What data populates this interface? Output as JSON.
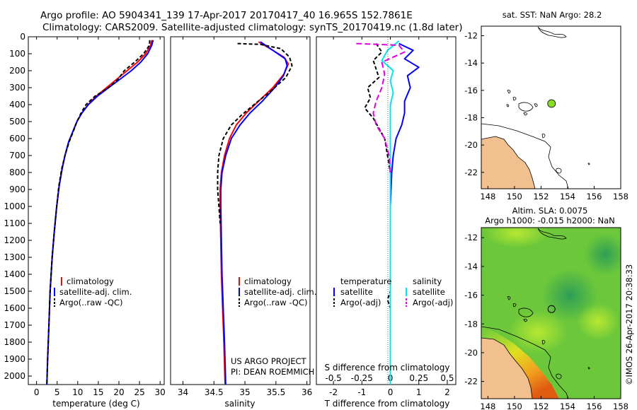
{
  "header": {
    "line1": "Argo profile: AO 5904341_139 17-Apr-2017 20170417_40 16.965S 152.7861E",
    "line2": "Climatology: CARS2009. Satellite-adjusted climatology: synTS_20170419.nc (1.8d later)"
  },
  "credits": {
    "project": "US ARGO PROJECT",
    "pi": "PI: DEAN ROEMMICH",
    "imos": "©IMOS 26-Apr-2017 20:38:33"
  },
  "colors": {
    "climatology": "#ff0000",
    "satellite": "#0000ff",
    "argo": "#000000",
    "sat_s": "#00e5ee",
    "argo_s": "#e000e0",
    "land": "#f2c08e",
    "argo_dot": "#88dd22"
  },
  "depth_axis": {
    "range": [
      0,
      2050
    ],
    "ticks": [
      0,
      100,
      200,
      300,
      400,
      500,
      600,
      700,
      800,
      900,
      1000,
      1100,
      1200,
      1300,
      1400,
      1500,
      1600,
      1700,
      1800,
      1900,
      2000
    ]
  },
  "chart_data": [
    {
      "id": "temperature",
      "type": "line",
      "xlabel": "temperature (deg C)",
      "xlim": [
        -2,
        31
      ],
      "xticks": [
        0,
        5,
        10,
        15,
        20,
        25,
        30
      ],
      "legend": [
        "climatology",
        "satellite-adj. clim.",
        "Argo(..raw -QC)"
      ],
      "series": [
        {
          "name": "climatology",
          "key": "climatology",
          "dash": "",
          "points": [
            [
              28.0,
              20
            ],
            [
              27.7,
              50
            ],
            [
              26.5,
              100
            ],
            [
              24.5,
              150
            ],
            [
              22.0,
              200
            ],
            [
              19.5,
              250
            ],
            [
              17.0,
              300
            ],
            [
              14.5,
              350
            ],
            [
              12.5,
              400
            ],
            [
              11.0,
              450
            ],
            [
              9.8,
              500
            ],
            [
              8.8,
              560
            ],
            [
              7.8,
              620
            ],
            [
              6.9,
              700
            ],
            [
              6.2,
              780
            ],
            [
              5.5,
              880
            ],
            [
              4.9,
              1000
            ],
            [
              4.3,
              1150
            ],
            [
              3.8,
              1300
            ],
            [
              3.3,
              1500
            ],
            [
              3.0,
              1700
            ],
            [
              2.7,
              1900
            ],
            [
              2.5,
              2050
            ]
          ]
        },
        {
          "name": "satellite-adj. clim.",
          "key": "satellite",
          "dash": "",
          "points": [
            [
              28.3,
              20
            ],
            [
              28.0,
              50
            ],
            [
              27.0,
              100
            ],
            [
              25.3,
              150
            ],
            [
              23.0,
              200
            ],
            [
              20.3,
              250
            ],
            [
              17.5,
              300
            ],
            [
              14.8,
              350
            ],
            [
              12.6,
              400
            ],
            [
              11.0,
              450
            ],
            [
              9.8,
              500
            ],
            [
              8.8,
              560
            ],
            [
              7.8,
              620
            ],
            [
              6.9,
              700
            ],
            [
              6.2,
              780
            ],
            [
              5.5,
              880
            ],
            [
              4.9,
              1000
            ],
            [
              4.3,
              1150
            ],
            [
              3.8,
              1300
            ],
            [
              3.3,
              1500
            ],
            [
              3.0,
              1700
            ],
            [
              2.7,
              1900
            ],
            [
              2.5,
              2050
            ]
          ]
        },
        {
          "name": "Argo(..raw -QC)",
          "key": "argo",
          "dash": "5,3",
          "points": [
            [
              27.5,
              20
            ],
            [
              27.4,
              50
            ],
            [
              26.0,
              100
            ],
            [
              23.8,
              150
            ],
            [
              21.3,
              200
            ],
            [
              19.8,
              250
            ],
            [
              17.5,
              300
            ],
            [
              14.2,
              350
            ],
            [
              12.0,
              400
            ],
            [
              10.8,
              450
            ],
            [
              9.8,
              500
            ],
            [
              8.9,
              560
            ],
            [
              7.9,
              620
            ],
            [
              6.9,
              700
            ],
            [
              6.1,
              780
            ],
            [
              5.4,
              880
            ],
            [
              4.9,
              1000
            ],
            [
              4.3,
              1150
            ],
            [
              3.8,
              1300
            ],
            [
              3.3,
              1500
            ],
            [
              3.0,
              1700
            ],
            [
              2.7,
              1900
            ],
            [
              2.5,
              2050
            ]
          ]
        }
      ]
    },
    {
      "id": "salinity",
      "type": "line",
      "xlabel": "salinity",
      "xlim": [
        33.8,
        36.05
      ],
      "xticks": [
        34,
        34.5,
        35,
        35.5,
        36
      ],
      "legend": [
        "climatology",
        "satellite-adj. clim.",
        "Argo(..raw -QC)"
      ],
      "series": [
        {
          "name": "climatology",
          "key": "climatology",
          "dash": "",
          "points": [
            [
              35.22,
              30
            ],
            [
              35.45,
              80
            ],
            [
              35.63,
              120
            ],
            [
              35.7,
              160
            ],
            [
              35.63,
              220
            ],
            [
              35.45,
              300
            ],
            [
              35.22,
              380
            ],
            [
              35.02,
              450
            ],
            [
              34.86,
              520
            ],
            [
              34.75,
              600
            ],
            [
              34.67,
              700
            ],
            [
              34.62,
              800
            ],
            [
              34.6,
              900
            ],
            [
              34.6,
              1000
            ],
            [
              34.61,
              1200
            ],
            [
              34.62,
              1400
            ],
            [
              34.64,
              1600
            ],
            [
              34.66,
              1800
            ],
            [
              34.68,
              2050
            ]
          ]
        },
        {
          "name": "satellite-adj. clim.",
          "key": "satellite",
          "dash": "",
          "points": [
            [
              35.25,
              30
            ],
            [
              35.45,
              80
            ],
            [
              35.65,
              130
            ],
            [
              35.68,
              170
            ],
            [
              35.62,
              230
            ],
            [
              35.48,
              300
            ],
            [
              35.28,
              380
            ],
            [
              35.08,
              450
            ],
            [
              34.92,
              520
            ],
            [
              34.78,
              600
            ],
            [
              34.69,
              700
            ],
            [
              34.63,
              800
            ],
            [
              34.61,
              900
            ],
            [
              34.61,
              1000
            ],
            [
              34.62,
              1200
            ],
            [
              34.63,
              1400
            ],
            [
              34.65,
              1600
            ],
            [
              34.67,
              1800
            ],
            [
              34.69,
              2050
            ]
          ]
        },
        {
          "name": "Argo(..raw -QC)",
          "key": "argo",
          "dash": "5,3",
          "points": [
            [
              34.88,
              40
            ],
            [
              35.25,
              45
            ],
            [
              35.58,
              70
            ],
            [
              35.72,
              120
            ],
            [
              35.76,
              170
            ],
            [
              35.66,
              240
            ],
            [
              35.42,
              320
            ],
            [
              35.18,
              390
            ],
            [
              34.95,
              460
            ],
            [
              34.78,
              520
            ],
            [
              34.65,
              600
            ],
            [
              34.58,
              700
            ],
            [
              34.56,
              800
            ],
            [
              34.56,
              900
            ],
            [
              34.58,
              1000
            ],
            [
              34.6,
              1100
            ]
          ]
        }
      ]
    },
    {
      "id": "differences",
      "type": "line",
      "xlabel": "T difference from climatology",
      "xlabel_top": "S difference from climatology",
      "xlim": [
        -2.6,
        2.3
      ],
      "xticks": [
        -2,
        -1,
        0,
        1,
        2
      ],
      "sticks": [
        {
          "label": "-0.5",
          "t": -2
        },
        {
          "label": "-0.25",
          "t": -1
        },
        {
          "label": "0",
          "t": 0
        },
        {
          "label": "0.25",
          "t": 1
        },
        {
          "label": "0.5",
          "t": 2
        }
      ],
      "legend": {
        "temperature_title": "temperature",
        "salinity_title": "salinity",
        "items": [
          "satellite",
          "Argo(-adj)",
          "satellite",
          "Argo(-adj)"
        ]
      },
      "series": [
        {
          "name": "T satellite",
          "key": "satellite",
          "dash": "",
          "points": [
            [
              0.3,
              40
            ],
            [
              0.8,
              80
            ],
            [
              0.5,
              130
            ],
            [
              1.0,
              180
            ],
            [
              0.6,
              230
            ],
            [
              0.7,
              300
            ],
            [
              0.5,
              380
            ],
            [
              0.5,
              450
            ],
            [
              0.4,
              520
            ],
            [
              0.2,
              600
            ],
            [
              0.1,
              700
            ],
            [
              0.05,
              800
            ],
            [
              0.0,
              1000
            ],
            [
              0.0,
              2050
            ]
          ]
        },
        {
          "name": "T Argo(-adj)",
          "key": "argo",
          "dash": "5,3",
          "points": [
            [
              -0.5,
              40
            ],
            [
              -0.3,
              90
            ],
            [
              -0.6,
              140
            ],
            [
              -0.5,
              190
            ],
            [
              -0.4,
              240
            ],
            [
              -0.8,
              300
            ],
            [
              -0.7,
              360
            ],
            [
              -0.9,
              420
            ],
            [
              -0.6,
              480
            ],
            [
              -0.4,
              540
            ],
            [
              -0.2,
              600
            ],
            [
              -0.1,
              700
            ],
            [
              0.0,
              800
            ],
            [
              0.0,
              1500
            ],
            [
              -0.1,
              1550
            ],
            [
              0.0,
              1600
            ],
            [
              0.0,
              2050
            ]
          ]
        },
        {
          "name": "S satellite",
          "key": "sat_s",
          "dash": "",
          "points": [
            [
              0.3,
              25
            ],
            [
              -0.1,
              80
            ],
            [
              -0.3,
              140
            ],
            [
              0.1,
              200
            ],
            [
              0.0,
              260
            ],
            [
              0.1,
              330
            ],
            [
              0.0,
              400
            ],
            [
              0.0,
              500
            ],
            [
              0.0,
              600
            ],
            [
              0.0,
              800
            ],
            [
              0.0,
              2050
            ]
          ]
        },
        {
          "name": "S Argo(-adj)",
          "key": "argo_s",
          "dash": "8,4",
          "points": [
            [
              -1.2,
              40
            ],
            [
              0.3,
              50
            ],
            [
              0.5,
              90
            ],
            [
              -0.3,
              150
            ],
            [
              -0.2,
              220
            ],
            [
              -0.3,
              300
            ],
            [
              -0.5,
              380
            ],
            [
              -0.6,
              450
            ],
            [
              -0.5,
              520
            ],
            [
              -0.2,
              600
            ],
            [
              -0.05,
              700
            ],
            [
              0.0,
              800
            ]
          ]
        }
      ]
    }
  ],
  "map_sst": {
    "title": "sat. SST: NaN Argo: 28.2",
    "lon_ticks": [
      148,
      150,
      152,
      154,
      156,
      158
    ],
    "lat_ticks": [
      -12,
      -14,
      -16,
      -18,
      -20,
      -22
    ],
    "lon_range": [
      147.5,
      158
    ],
    "lat_range": [
      -11.3,
      -23.2
    ],
    "argo_lon": 152.79,
    "argo_lat": -16.965
  },
  "map_sla": {
    "title1": "Altim. SLA: 0.0075",
    "title2": "Argo h1000: -0.015 h2000: NaN",
    "lon_ticks": [
      148,
      150,
      152,
      154,
      156,
      158
    ],
    "lat_ticks": [
      -12,
      -14,
      -16,
      -18,
      -20,
      -22
    ],
    "lon_range": [
      147.5,
      158
    ],
    "lat_range": [
      -11.3,
      -23.2
    ],
    "argo_lon": 152.79,
    "argo_lat": -16.965
  }
}
